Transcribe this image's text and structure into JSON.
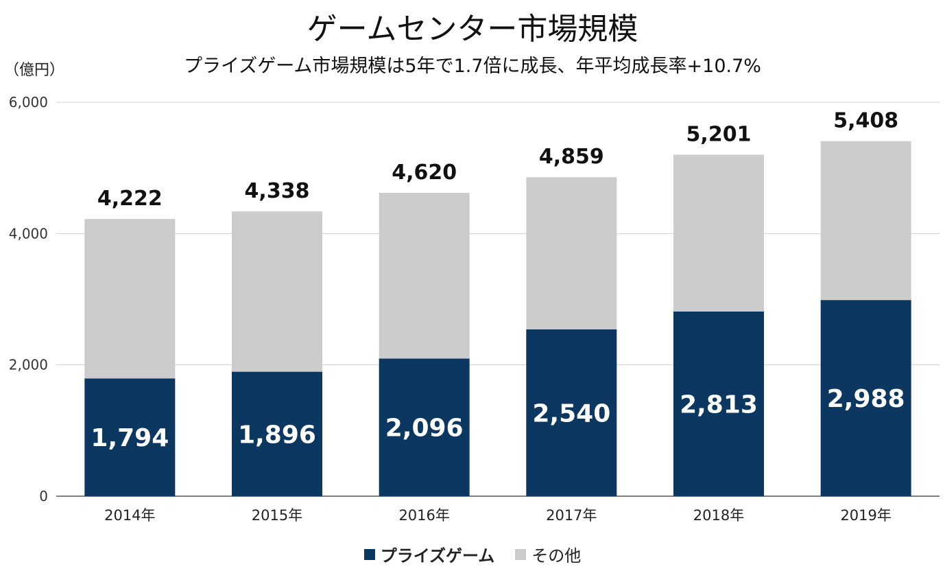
{
  "chart_data": {
    "type": "bar",
    "stacked": true,
    "title": "ゲームセンター市場規模",
    "subtitle": "プライズゲーム市場規模は5年で1.7倍に成長、年平均成長率+10.7%",
    "ylabel": "（億円）",
    "xlabel": "",
    "ylim": [
      0,
      6000
    ],
    "yticks": [
      0,
      2000,
      4000,
      6000
    ],
    "ytick_labels": [
      "0",
      "2,000",
      "4,000",
      "6,000"
    ],
    "grid": true,
    "legend_position": "bottom",
    "categories": [
      "2014年",
      "2015年",
      "2016年",
      "2017年",
      "2018年",
      "2019年"
    ],
    "series": [
      {
        "name": "プライズゲーム",
        "color": "#0b3760",
        "values": [
          1794,
          1896,
          2096,
          2540,
          2813,
          2988
        ],
        "labels": [
          "1,794",
          "1,896",
          "2,096",
          "2,540",
          "2,813",
          "2,988"
        ]
      },
      {
        "name": "その他",
        "color": "#cccccc",
        "values": [
          2428,
          2442,
          2524,
          2319,
          2388,
          2420
        ]
      }
    ],
    "totals": [
      4222,
      4338,
      4620,
      4859,
      5201,
      5408
    ],
    "total_labels": [
      "4,222",
      "4,338",
      "4,620",
      "4,859",
      "5,201",
      "5,408"
    ]
  }
}
